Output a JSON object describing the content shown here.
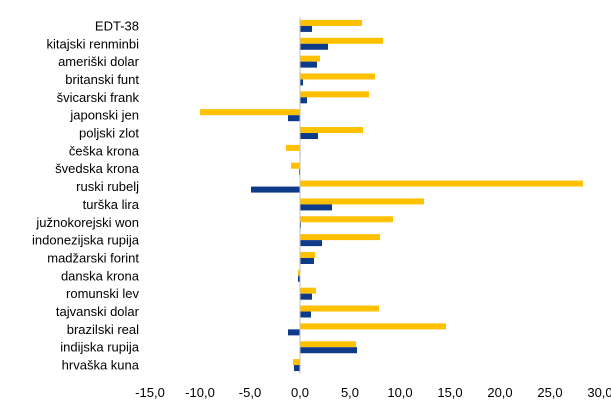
{
  "chart_data": {
    "type": "bar",
    "orientation": "horizontal",
    "grid": false,
    "legend": "none",
    "xlim": [
      -15,
      30
    ],
    "x_ticks": [
      "-15,0",
      "-10,0",
      "-5,0",
      "0,0",
      "5,0",
      "10,0",
      "15,0",
      "20,0",
      "25,0",
      "30,0"
    ],
    "categories": [
      "EDT-38",
      "kitajski renminbi",
      "ameriški dolar",
      "britanski funt",
      "švicarski frank",
      "japonski jen",
      "poljski zlot",
      "češka krona",
      "švedska krona",
      "ruski rubelj",
      "turška lira",
      "južnokorejski won",
      "indonezijska rupija",
      "madžarski forint",
      "danska krona",
      "romunski lev",
      "tajvanski dolar",
      "brazilski real",
      "indijska rupija",
      "hrvaška kuna"
    ],
    "series": [
      {
        "color": "#FFC000",
        "values": [
          6.2,
          8.3,
          2.0,
          7.5,
          6.9,
          -10.0,
          6.3,
          -1.4,
          -0.9,
          28.3,
          12.4,
          9.3,
          8.0,
          1.5,
          -0.2,
          1.6,
          7.9,
          14.6,
          5.6,
          -0.7
        ]
      },
      {
        "color": "#0E3A8A",
        "values": [
          1.2,
          2.8,
          1.7,
          0.3,
          0.7,
          -1.2,
          1.8,
          0.0,
          -0.1,
          -4.9,
          3.2,
          0.1,
          2.2,
          1.4,
          -0.2,
          1.2,
          1.1,
          -1.2,
          5.7,
          -0.6
        ]
      }
    ]
  }
}
